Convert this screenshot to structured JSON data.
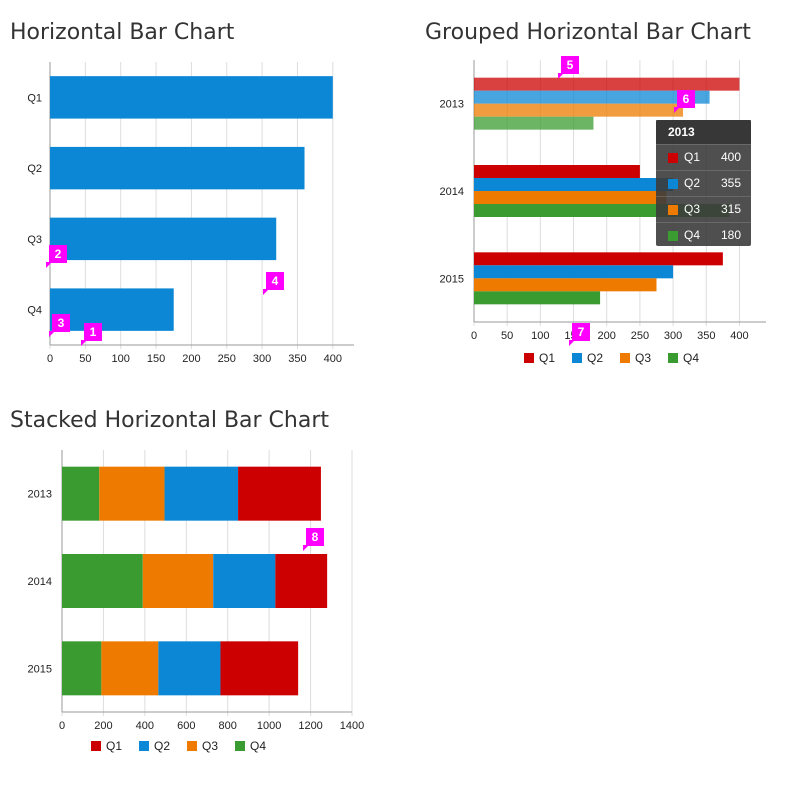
{
  "chart_data": [
    {
      "type": "bar",
      "orientation": "horizontal",
      "title": "Horizontal Bar Chart",
      "categories": [
        "Q1",
        "Q2",
        "Q3",
        "Q4"
      ],
      "values": [
        400,
        360,
        320,
        175
      ],
      "xlim": [
        0,
        430
      ],
      "xticks": [
        0,
        50,
        100,
        150,
        200,
        250,
        300,
        350,
        400
      ],
      "grid": true,
      "color": "#0b87d6"
    },
    {
      "type": "bar",
      "orientation": "horizontal",
      "grouped": true,
      "title": "Grouped Horizontal Bar Chart",
      "categories": [
        "2013",
        "2014",
        "2015"
      ],
      "series": [
        {
          "name": "Q1",
          "color": "#cc0000",
          "values": [
            400,
            250,
            375
          ]
        },
        {
          "name": "Q2",
          "color": "#0b87d6",
          "values": [
            355,
            300,
            300
          ]
        },
        {
          "name": "Q3",
          "color": "#ee7b00",
          "values": [
            315,
            290,
            275
          ]
        },
        {
          "name": "Q4",
          "color": "#3a9c30",
          "values": [
            180,
            385,
            190
          ]
        }
      ],
      "xlim": [
        0,
        440
      ],
      "xticks": [
        0,
        50,
        100,
        150,
        200,
        250,
        300,
        350,
        400
      ],
      "legend": "bottom",
      "grid": true
    },
    {
      "type": "bar",
      "orientation": "horizontal",
      "stacked": true,
      "title": "Stacked Horizontal Bar Chart",
      "categories": [
        "2013",
        "2014",
        "2015"
      ],
      "series": [
        {
          "name": "Q1",
          "color": "#cc0000",
          "values": [
            400,
            250,
            375
          ]
        },
        {
          "name": "Q2",
          "color": "#0b87d6",
          "values": [
            355,
            300,
            300
          ]
        },
        {
          "name": "Q3",
          "color": "#ee7b00",
          "values": [
            315,
            340,
            275
          ]
        },
        {
          "name": "Q4",
          "color": "#3a9c30",
          "values": [
            180,
            390,
            190
          ]
        }
      ],
      "stack_order": [
        "Q4",
        "Q3",
        "Q2",
        "Q1"
      ],
      "xlim": [
        0,
        1400
      ],
      "xticks": [
        0,
        200,
        400,
        600,
        800,
        1000,
        1200,
        1400
      ],
      "legend": "bottom",
      "grid": true
    }
  ],
  "tooltip": {
    "title": "2013",
    "rows": [
      {
        "name": "Q1",
        "value": "400",
        "color": "#cc0000"
      },
      {
        "name": "Q2",
        "value": "355",
        "color": "#0b87d6"
      },
      {
        "name": "Q3",
        "value": "315",
        "color": "#ee7b00"
      },
      {
        "name": "Q4",
        "value": "180",
        "color": "#3a9c30"
      }
    ]
  },
  "markers": [
    "1",
    "2",
    "3",
    "4",
    "5",
    "6",
    "7",
    "8"
  ]
}
